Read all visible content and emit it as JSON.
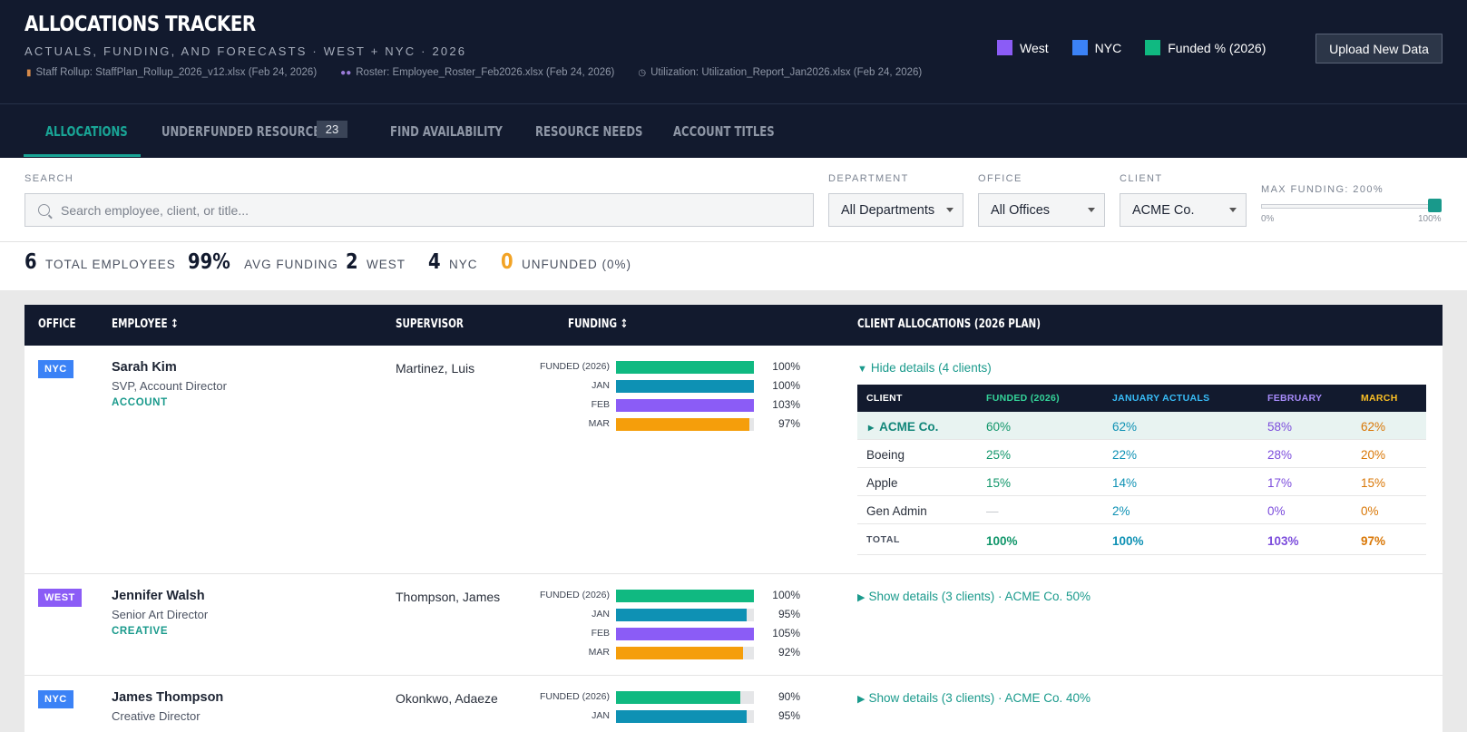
{
  "header": {
    "title": "ALLOCATIONS TRACKER",
    "subtitle": "ACTUALS, FUNDING, AND FORECASTS · WEST + NYC · 2026",
    "sources": [
      {
        "icon": "bar-chart-icon",
        "text": "Staff Rollup: StaffPlan_Rollup_2026_v12.xlsx (Feb 24, 2026)"
      },
      {
        "icon": "people-icon",
        "text": "Roster: Employee_Roster_Feb2026.xlsx (Feb 24, 2026)"
      },
      {
        "icon": "stopwatch-icon",
        "text": "Utilization: Utilization_Report_Jan2026.xlsx (Feb 24, 2026)"
      }
    ],
    "legend": [
      {
        "label": "West",
        "color": "#8b5cf6"
      },
      {
        "label": "NYC",
        "color": "#3b82f6"
      },
      {
        "label": "Funded % (2026)",
        "color": "#10b981"
      }
    ],
    "upload_label": "Upload New Data"
  },
  "tabs": [
    {
      "label": "ALLOCATIONS",
      "active": true
    },
    {
      "label": "UNDERFUNDED RESOURCES",
      "badge": "23"
    },
    {
      "label": "FIND AVAILABILITY"
    },
    {
      "label": "RESOURCE NEEDS"
    },
    {
      "label": "ACCOUNT TITLES"
    }
  ],
  "filters": {
    "search_label": "SEARCH",
    "search_placeholder": "Search employee, client, or title...",
    "department_label": "DEPARTMENT",
    "department_value": "All Departments",
    "office_label": "OFFICE",
    "office_value": "All Offices",
    "client_label": "CLIENT",
    "client_value": "ACME Co.",
    "max_funding_label": "MAX FUNDING: 200%",
    "slider_min": "0%",
    "slider_max": "100%",
    "slider_fraction": 1.0
  },
  "summary": [
    {
      "value": "6",
      "label": "TOTAL EMPLOYEES",
      "color": "#121a2e"
    },
    {
      "value": "99%",
      "label": "AVG FUNDING",
      "color": "#121a2e"
    },
    {
      "value": "2",
      "label": "WEST",
      "color": "#121a2e"
    },
    {
      "value": "4",
      "label": "NYC",
      "color": "#121a2e"
    },
    {
      "value": "0",
      "label": "UNFUNDED (0%)",
      "color": "#f2a325"
    }
  ],
  "table": {
    "headers": {
      "office": "OFFICE",
      "employee": "EMPLOYEE ↕",
      "supervisor": "SUPERVISOR",
      "funding": "FUNDING ↕",
      "allocations": "CLIENT ALLOCATIONS (2026 PLAN)"
    },
    "funding_colors": {
      "funded": "#10b981",
      "jan": "#0e91b4",
      "feb": "#8b5cf6",
      "mar": "#f59e0b"
    },
    "rows": [
      {
        "office": "NYC",
        "office_color": "#3b82f6",
        "name": "Sarah Kim",
        "title": "SVP, Account Director",
        "dept": "ACCOUNT",
        "supervisor": "Martinez, Luis",
        "funding": [
          {
            "label": "FUNDED (2026)",
            "pct": "100%",
            "value": 100,
            "key": "funded"
          },
          {
            "label": "JAN",
            "pct": "100%",
            "value": 100,
            "key": "jan"
          },
          {
            "label": "FEB",
            "pct": "103%",
            "value": 103,
            "key": "feb"
          },
          {
            "label": "MAR",
            "pct": "97%",
            "value": 97,
            "key": "mar"
          }
        ],
        "details_link": "Hide details (4 clients)",
        "expanded": true,
        "clients_table": {
          "headers": [
            "CLIENT",
            "FUNDED (2026)",
            "JANUARY ACTUALS",
            "FEBRUARY",
            "MARCH"
          ],
          "rows": [
            {
              "client": "ACME Co.",
              "funded": "60%",
              "jan": "62%",
              "feb": "58%",
              "mar": "62%",
              "highlight": true
            },
            {
              "client": "Boeing",
              "funded": "25%",
              "jan": "22%",
              "feb": "28%",
              "mar": "20%"
            },
            {
              "client": "Apple",
              "funded": "15%",
              "jan": "14%",
              "feb": "17%",
              "mar": "15%"
            },
            {
              "client": "Gen Admin",
              "funded": "—",
              "jan": "2%",
              "feb": "0%",
              "mar": "0%"
            }
          ],
          "total": {
            "client": "TOTAL",
            "funded": "100%",
            "jan": "100%",
            "feb": "103%",
            "mar": "97%"
          }
        }
      },
      {
        "office": "WEST",
        "office_color": "#8b5cf6",
        "name": "Jennifer Walsh",
        "title": "Senior Art Director",
        "dept": "CREATIVE",
        "supervisor": "Thompson, James",
        "funding": [
          {
            "label": "FUNDED (2026)",
            "pct": "100%",
            "value": 100,
            "key": "funded"
          },
          {
            "label": "JAN",
            "pct": "95%",
            "value": 95,
            "key": "jan"
          },
          {
            "label": "FEB",
            "pct": "105%",
            "value": 105,
            "key": "feb"
          },
          {
            "label": "MAR",
            "pct": "92%",
            "value": 92,
            "key": "mar"
          }
        ],
        "details_link": "Show details (3 clients) · ACME Co. 50%",
        "expanded": false
      },
      {
        "office": "NYC",
        "office_color": "#3b82f6",
        "name": "James Thompson",
        "title": "Creative Director",
        "dept": "",
        "supervisor": "Okonkwo, Adaeze",
        "funding": [
          {
            "label": "FUNDED (2026)",
            "pct": "90%",
            "value": 90,
            "key": "funded"
          },
          {
            "label": "JAN",
            "pct": "95%",
            "value": 95,
            "key": "jan"
          }
        ],
        "details_link": "Show details (3 clients) · ACME Co. 40%",
        "expanded": false
      }
    ]
  }
}
